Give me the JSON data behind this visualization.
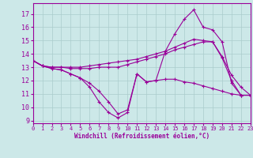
{
  "xlabel": "Windchill (Refroidissement éolien,°C)",
  "bg_color": "#cce8e8",
  "line_color": "#990099",
  "grid_color": "#aacccc",
  "xlim": [
    0,
    23
  ],
  "ylim": [
    8.8,
    17.8
  ],
  "yticks": [
    9,
    10,
    11,
    12,
    13,
    14,
    15,
    16,
    17
  ],
  "xticks": [
    0,
    1,
    2,
    3,
    4,
    5,
    6,
    7,
    8,
    9,
    10,
    11,
    12,
    13,
    14,
    15,
    16,
    17,
    18,
    19,
    20,
    21,
    22,
    23
  ],
  "series": [
    {
      "x": [
        0,
        1,
        2,
        3,
        4,
        5,
        6,
        7,
        8,
        9,
        10,
        11,
        12,
        13,
        14,
        15,
        16,
        17,
        18,
        19,
        20,
        21,
        22,
        23
      ],
      "y": [
        13.5,
        13.1,
        12.9,
        12.8,
        12.5,
        12.2,
        11.8,
        11.2,
        10.4,
        9.5,
        9.8,
        12.5,
        11.9,
        12.0,
        12.1,
        12.1,
        11.9,
        11.8,
        11.6,
        11.4,
        11.2,
        11.0,
        10.9,
        10.9
      ]
    },
    {
      "x": [
        0,
        1,
        2,
        3,
        4,
        5,
        6,
        7,
        8,
        9,
        10,
        11,
        12,
        13,
        14,
        15,
        16,
        17,
        18,
        19,
        20,
        21,
        22,
        23
      ],
      "y": [
        13.5,
        13.1,
        12.9,
        12.8,
        12.5,
        12.2,
        11.5,
        10.4,
        9.6,
        9.2,
        9.6,
        12.5,
        11.9,
        12.0,
        14.2,
        15.5,
        16.6,
        17.3,
        16.0,
        15.8,
        14.9,
        11.8,
        10.9,
        10.9
      ]
    },
    {
      "x": [
        0,
        1,
        2,
        3,
        4,
        5,
        6,
        7,
        8,
        9,
        10,
        11,
        12,
        13,
        14,
        15,
        16,
        17,
        18,
        19,
        20,
        21,
        22,
        23
      ],
      "y": [
        13.5,
        13.1,
        13.0,
        13.0,
        13.0,
        13.0,
        13.1,
        13.2,
        13.3,
        13.4,
        13.5,
        13.6,
        13.8,
        14.0,
        14.2,
        14.5,
        14.8,
        15.1,
        15.0,
        14.9,
        13.8,
        12.4,
        11.5,
        10.9
      ]
    },
    {
      "x": [
        0,
        1,
        2,
        3,
        4,
        5,
        6,
        7,
        8,
        9,
        10,
        11,
        12,
        13,
        14,
        15,
        16,
        17,
        18,
        19,
        20,
        21,
        22,
        23
      ],
      "y": [
        13.5,
        13.1,
        13.0,
        13.0,
        12.9,
        12.9,
        12.9,
        13.0,
        13.0,
        13.0,
        13.2,
        13.4,
        13.6,
        13.8,
        14.0,
        14.3,
        14.5,
        14.7,
        14.9,
        14.9,
        13.7,
        12.0,
        10.9,
        10.9
      ]
    }
  ]
}
